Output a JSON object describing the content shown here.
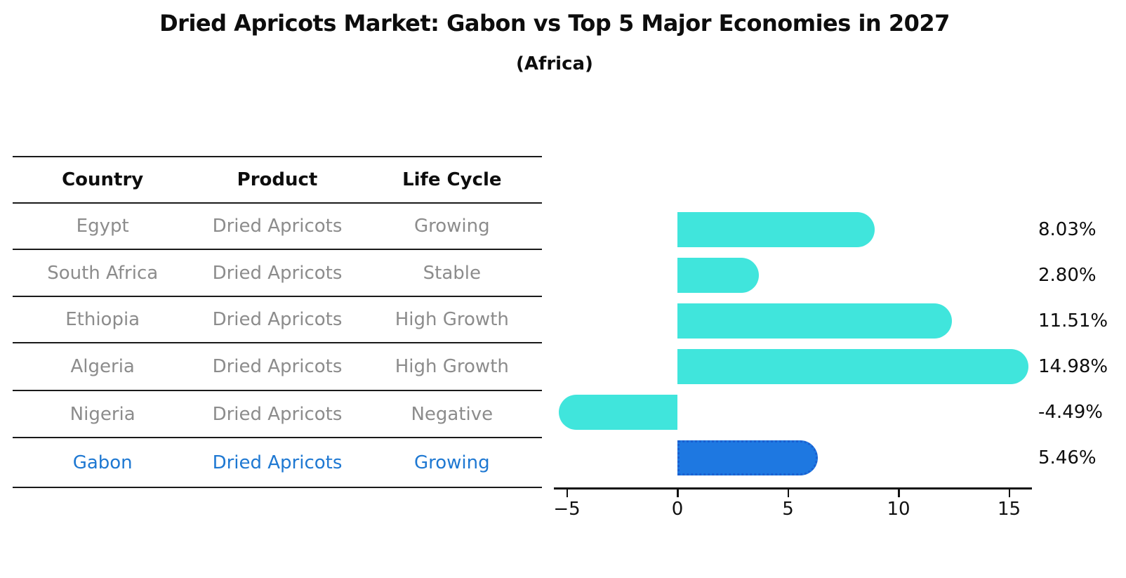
{
  "header": {
    "title": "Dried Apricots Market: Gabon vs Top 5 Major Economies in 2027",
    "subtitle": "(Africa)"
  },
  "table": {
    "columns": [
      "Country",
      "Product",
      "Life Cycle"
    ],
    "rows": [
      {
        "country": "Egypt",
        "product": "Dried Apricots",
        "life_cycle": "Growing",
        "highlight": false
      },
      {
        "country": "South Africa",
        "product": "Dried Apricots",
        "life_cycle": "Stable",
        "highlight": false
      },
      {
        "country": "Ethiopia",
        "product": "Dried Apricots",
        "life_cycle": "High Growth",
        "highlight": false
      },
      {
        "country": "Algeria",
        "product": "Dried Apricots",
        "life_cycle": "High Growth",
        "highlight": false
      },
      {
        "country": "Nigeria",
        "product": "Dried Apricots",
        "life_cycle": "Negative",
        "highlight": false
      },
      {
        "country": "Gabon",
        "product": "Dried Apricots",
        "life_cycle": "Growing",
        "highlight": true
      }
    ]
  },
  "chart_data": {
    "type": "bar",
    "orientation": "horizontal",
    "categories": [
      "Egypt",
      "South Africa",
      "Ethiopia",
      "Algeria",
      "Nigeria",
      "Gabon"
    ],
    "values": [
      8.03,
      2.8,
      11.51,
      14.98,
      -4.49,
      5.46
    ],
    "value_labels": [
      "8.03%",
      "2.80%",
      "11.51%",
      "14.98%",
      "-4.49%",
      "5.46%"
    ],
    "x_ticks": [
      -5,
      0,
      5,
      10,
      15
    ],
    "x_tick_labels": [
      "−5",
      "0",
      "5",
      "10",
      "15"
    ],
    "xlim": [
      -5.6,
      16.2
    ],
    "highlight_index": 5,
    "title": "Dried Apricots Market: Gabon vs Top 5 Major Economies in 2027",
    "xlabel": "",
    "ylabel": "",
    "grid": false,
    "legend": false
  },
  "colors": {
    "bar_default": "#40e5dc",
    "bar_highlight": "#1e78e1",
    "bar_highlight_border": "#1a5fd0",
    "table_text": "#8c8c8c",
    "highlight_text": "#1e78d2",
    "axis": "#111111"
  }
}
